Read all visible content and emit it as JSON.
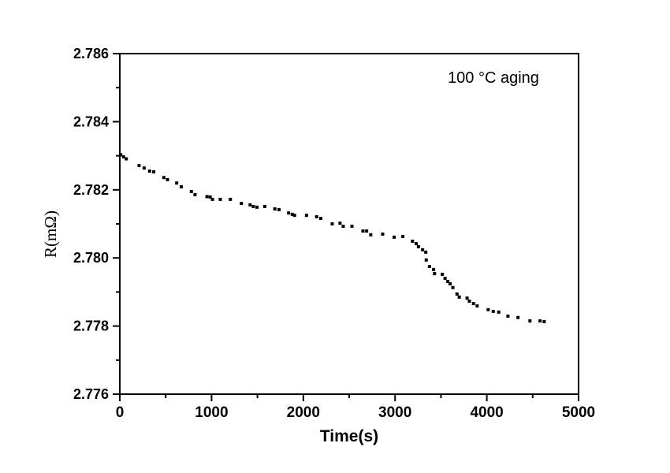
{
  "colors": {
    "foreground": "#000000",
    "background": "#ffffff"
  },
  "chart_data": {
    "type": "scatter",
    "title": "",
    "xlabel": "Time(s)",
    "ylabel": "R(mΩ)",
    "annotation": "100 °C aging",
    "xlim": [
      0,
      5000
    ],
    "ylim": [
      2.776,
      2.786
    ],
    "grid": false,
    "legend": "none",
    "marker": {
      "shape": "square",
      "size": 4,
      "color": "#000000"
    },
    "x_major_ticks": [
      {
        "value": 0,
        "label": "0"
      },
      {
        "value": 1000,
        "label": "1000"
      },
      {
        "value": 2000,
        "label": "2000"
      },
      {
        "value": 3000,
        "label": "3000"
      },
      {
        "value": 4000,
        "label": "4000"
      },
      {
        "value": 5000,
        "label": "5000"
      }
    ],
    "x_minor_ticks": [
      500,
      1500,
      2500,
      3500,
      4500
    ],
    "y_major_ticks": [
      {
        "value": 2.776,
        "label": "2.776"
      },
      {
        "value": 2.778,
        "label": "2.778"
      },
      {
        "value": 2.78,
        "label": "2.780"
      },
      {
        "value": 2.782,
        "label": "2.782"
      },
      {
        "value": 2.784,
        "label": "2.784"
      },
      {
        "value": 2.786,
        "label": "2.786"
      }
    ],
    "y_minor_ticks": [
      2.777,
      2.779,
      2.781,
      2.783,
      2.785
    ],
    "points": [
      [
        10,
        2.78303
      ],
      [
        40,
        2.78297
      ],
      [
        70,
        2.78291
      ],
      [
        210,
        2.78271
      ],
      [
        265,
        2.78264
      ],
      [
        325,
        2.78255
      ],
      [
        370,
        2.78253
      ],
      [
        480,
        2.78236
      ],
      [
        520,
        2.7823
      ],
      [
        620,
        2.7822
      ],
      [
        670,
        2.78209
      ],
      [
        780,
        2.78195
      ],
      [
        820,
        2.78186
      ],
      [
        950,
        2.7818
      ],
      [
        985,
        2.78179
      ],
      [
        1010,
        2.78172
      ],
      [
        1095,
        2.78172
      ],
      [
        1205,
        2.78172
      ],
      [
        1325,
        2.7816
      ],
      [
        1420,
        2.78156
      ],
      [
        1455,
        2.78151
      ],
      [
        1495,
        2.78149
      ],
      [
        1580,
        2.78151
      ],
      [
        1690,
        2.78144
      ],
      [
        1735,
        2.78142
      ],
      [
        1840,
        2.78132
      ],
      [
        1880,
        2.78128
      ],
      [
        1905,
        2.78125
      ],
      [
        2035,
        2.78125
      ],
      [
        2145,
        2.78121
      ],
      [
        2190,
        2.78116
      ],
      [
        2315,
        2.781
      ],
      [
        2400,
        2.78102
      ],
      [
        2435,
        2.78093
      ],
      [
        2530,
        2.78093
      ],
      [
        2650,
        2.78079
      ],
      [
        2690,
        2.78079
      ],
      [
        2735,
        2.78068
      ],
      [
        2865,
        2.7807
      ],
      [
        2990,
        2.78061
      ],
      [
        3085,
        2.78063
      ],
      [
        3190,
        2.78049
      ],
      [
        3230,
        2.78042
      ],
      [
        3255,
        2.78033
      ],
      [
        3300,
        2.78024
      ],
      [
        3335,
        2.78017
      ],
      [
        3340,
        2.77994
      ],
      [
        3375,
        2.77975
      ],
      [
        3420,
        2.77966
      ],
      [
        3430,
        2.77954
      ],
      [
        3515,
        2.77952
      ],
      [
        3545,
        2.7794
      ],
      [
        3575,
        2.77931
      ],
      [
        3600,
        2.77924
      ],
      [
        3630,
        2.77913
      ],
      [
        3675,
        2.77894
      ],
      [
        3700,
        2.77885
      ],
      [
        3785,
        2.77882
      ],
      [
        3810,
        2.77873
      ],
      [
        3855,
        2.77866
      ],
      [
        3895,
        2.77859
      ],
      [
        4015,
        2.77848
      ],
      [
        4070,
        2.77843
      ],
      [
        4130,
        2.77841
      ],
      [
        4230,
        2.77829
      ],
      [
        4340,
        2.77825
      ],
      [
        4470,
        2.77815
      ],
      [
        4580,
        2.77815
      ],
      [
        4625,
        2.77813
      ]
    ]
  }
}
